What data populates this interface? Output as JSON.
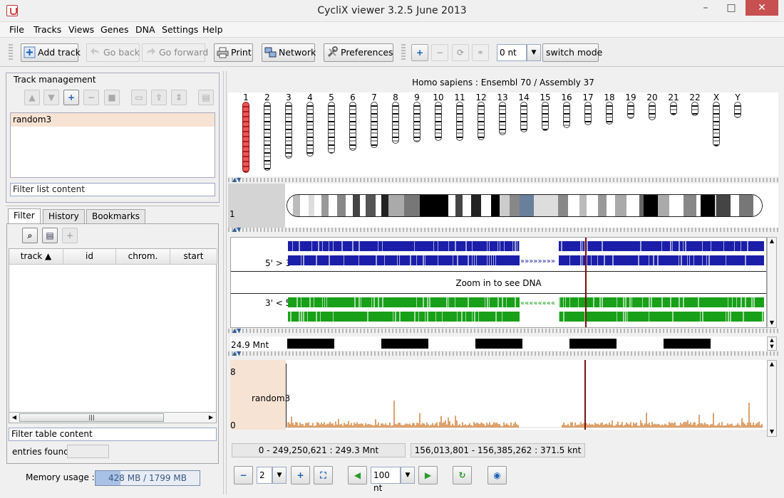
{
  "window": {
    "title": "CycliX viewer 3.2.5 June 2013",
    "minimize": "–",
    "maximize": "□",
    "close": "✕"
  },
  "menu": [
    "File",
    "Tracks",
    "Views",
    "Genes",
    "DNA",
    "Settings",
    "Help"
  ],
  "toolbar": {
    "add_track": "Add track",
    "go_back": "Go back",
    "go_forward": "Go forward",
    "print": "Print",
    "network": "Network",
    "preferences": "Preferences",
    "offset_value": "0 nt",
    "switch_mode": "switch mode"
  },
  "track_management": {
    "title": "Track management",
    "tracks": [
      "random3"
    ],
    "filter_placeholder": "Filter list content"
  },
  "tabs": [
    "Filter",
    "History",
    "Bookmarks"
  ],
  "table": {
    "columns": [
      "track ▲",
      "id",
      "chrom.",
      "start"
    ],
    "filter_placeholder": "Filter table content",
    "entries_label": "entries found",
    "entries_value": ""
  },
  "memory": {
    "label": "Memory usage :",
    "value": "428 MB / 1799 MB",
    "fraction": 0.24
  },
  "genome": {
    "header": "Homo sapiens : Ensembl 70 / Assembly 37"
  },
  "chromosomes": [
    "1",
    "2",
    "3",
    "4",
    "5",
    "6",
    "7",
    "8",
    "9",
    "10",
    "11",
    "12",
    "13",
    "14",
    "15",
    "16",
    "17",
    "18",
    "19",
    "20",
    "21",
    "22",
    "X",
    "Y"
  ],
  "chromosome_lengths_rel": [
    1.0,
    0.97,
    0.8,
    0.77,
    0.73,
    0.69,
    0.65,
    0.59,
    0.57,
    0.55,
    0.55,
    0.54,
    0.47,
    0.43,
    0.41,
    0.37,
    0.33,
    0.32,
    0.24,
    0.26,
    0.19,
    0.2,
    0.63,
    0.23
  ],
  "selected_chromosome": "1",
  "ideogram": {
    "label": "1"
  },
  "dna_track": {
    "forward_label": "5' > 3'",
    "reverse_label": "3' < 5'",
    "message": "Zoom in to see DNA"
  },
  "scale_track": {
    "label": "24.9 Mnt"
  },
  "signal_track": {
    "name": "random3",
    "ymax": "8",
    "ymin": "0"
  },
  "status": {
    "chromosome_range": "0 - 249,250,621 : 249.3 Mnt",
    "view_range": "156,013,801 - 156,385,262 : 371.5 knt"
  },
  "bottom_nav": {
    "zoom_level": "2",
    "window_size": "100 nt"
  },
  "colors": {
    "forward_strand": "#1a1ea8",
    "reverse_strand": "#19a019",
    "signal": "#c8650c",
    "selected_chromosome": "#ee5555"
  }
}
